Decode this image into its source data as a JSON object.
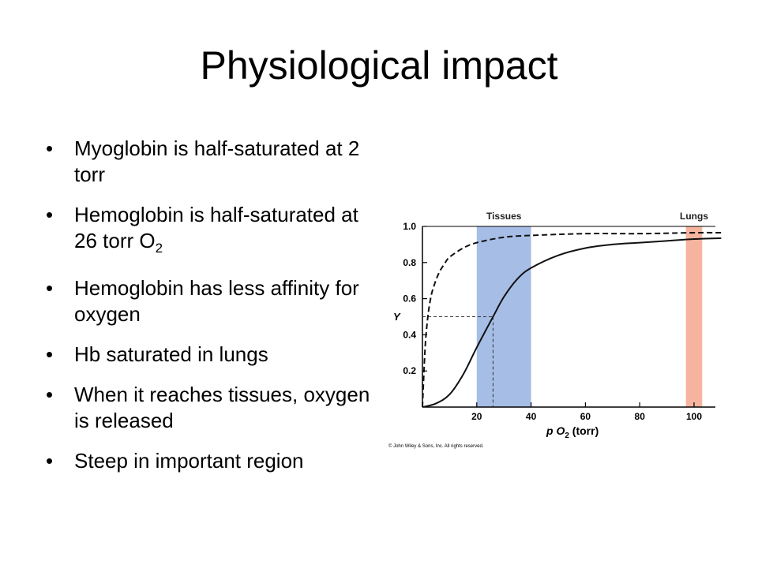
{
  "slide": {
    "title": "Physiological impact",
    "bullets": [
      {
        "text": "Myoglobin is half-saturated at 2 torr"
      },
      {
        "text": "Hemoglobin is half-saturated at 26 torr O",
        "sub": "2"
      },
      {
        "text": "Hemoglobin has less affinity for oxygen"
      },
      {
        "text": "Hb saturated in lungs"
      },
      {
        "text": "When it reaches tissues, oxygen is released"
      },
      {
        "text": "Steep in important region"
      }
    ]
  },
  "chart_data": {
    "type": "line",
    "title": "",
    "xlabel": "p O",
    "xlabel_sub": "2",
    "xlabel_unit": "(torr)",
    "ylabel": "Y",
    "xlim": [
      0,
      120
    ],
    "ylim": [
      0,
      1.0
    ],
    "xticks": [
      20,
      40,
      60,
      80,
      100
    ],
    "yticks": [
      0.2,
      0.4,
      0.6,
      0.8,
      1.0
    ],
    "ytick_labels": [
      "0.2",
      "0.4",
      "0.6",
      "0.8",
      "1.0"
    ],
    "series": [
      {
        "style": "dashed",
        "x": [
          0,
          1,
          2,
          3,
          4,
          6,
          8,
          10,
          15,
          20,
          30,
          40,
          60,
          80,
          100,
          110
        ],
        "y": [
          0.0,
          0.33,
          0.5,
          0.6,
          0.66,
          0.74,
          0.79,
          0.83,
          0.88,
          0.91,
          0.94,
          0.95,
          0.96,
          0.96,
          0.965,
          0.965
        ]
      },
      {
        "style": "solid",
        "x": [
          0,
          5,
          10,
          15,
          20,
          26,
          30,
          35,
          40,
          50,
          60,
          70,
          80,
          90,
          100,
          110
        ],
        "y": [
          0.0,
          0.02,
          0.07,
          0.18,
          0.33,
          0.5,
          0.61,
          0.71,
          0.77,
          0.84,
          0.88,
          0.9,
          0.91,
          0.92,
          0.93,
          0.935
        ]
      }
    ],
    "bands": [
      {
        "label": "Tissues",
        "from": 20,
        "to": 40,
        "color": "#a6bde6"
      },
      {
        "label": "Lungs",
        "from": 97,
        "to": 103,
        "color": "#f6b49f"
      }
    ],
    "annotations": [
      {
        "x": 26,
        "y": 0.5,
        "style": "dashed-guide"
      }
    ],
    "copyright": "© John Wiley & Sons, Inc. All rights reserved."
  }
}
